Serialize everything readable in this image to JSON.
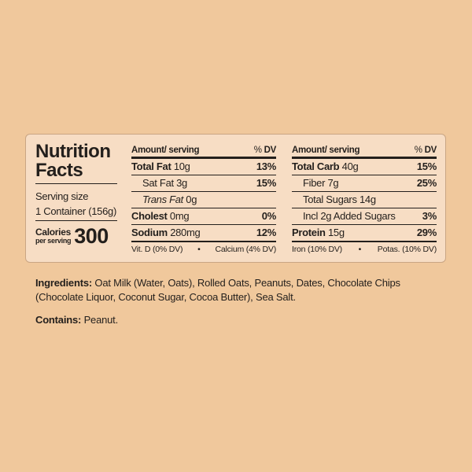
{
  "label": {
    "title_line1": "Nutrition",
    "title_line2": "Facts",
    "serving_label": "Serving size",
    "serving_value": "1 Container (156g)",
    "calories_label": "Calories",
    "calories_sub": "per serving",
    "calories": "300",
    "header": {
      "amount": "Amount/ serving",
      "dv_pct": "%",
      "dv": "DV"
    },
    "left_rows": [
      {
        "name": "Total Fat",
        "amount": "10g",
        "dv": "13%"
      },
      {
        "name": "Sat Fat",
        "amount": "3g",
        "dv": "15%"
      },
      {
        "name": "Trans Fat",
        "amount": "0g",
        "dv": ""
      },
      {
        "name": "Cholest",
        "amount": "0mg",
        "dv": "0%"
      },
      {
        "name": "Sodium",
        "amount": "280mg",
        "dv": "12%"
      }
    ],
    "right_rows": [
      {
        "name": "Total Carb",
        "amount": "40g",
        "dv": "15%"
      },
      {
        "name": "Fiber",
        "amount": "7g",
        "dv": "25%"
      },
      {
        "name": "Total Sugars",
        "amount": "14g",
        "dv": ""
      },
      {
        "name": "Incl 2g Added Sugars",
        "amount": "",
        "dv": "3%"
      },
      {
        "name": "Protein",
        "amount": "15g",
        "dv": "29%"
      }
    ],
    "vitamins_left": [
      "Vit. D (0% DV)",
      "•",
      "Calcium (4% DV)"
    ],
    "vitamins_right": [
      "Iron (10% DV)",
      "•",
      "Potas. (10% DV)"
    ]
  },
  "ingredients": {
    "label": "Ingredients:",
    "text": "Oat Milk (Water, Oats), Rolled Oats, Peanuts, Dates, Chocolate Chips (Chocolate Liquor, Coconut Sugar, Cocoa Butter), Sea Salt."
  },
  "contains": {
    "label": "Contains:",
    "text": "Peanut."
  },
  "colors": {
    "background": "#f0c89c",
    "panel": "#f7ddc4",
    "text": "#231f1c"
  }
}
